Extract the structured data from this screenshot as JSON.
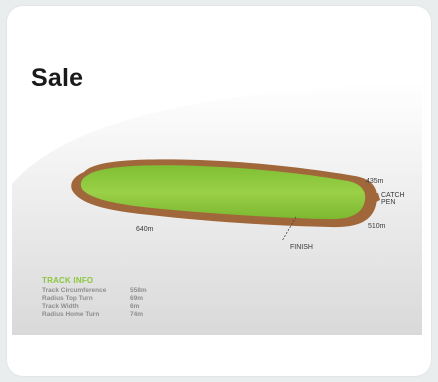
{
  "title": "Sale",
  "track_labels": {
    "dist_640": "640m",
    "dist_435": "435m",
    "dist_510": "510m",
    "catch_pen_line1": "CATCH",
    "catch_pen_line2": "PEN",
    "finish": "FINISH"
  },
  "track_info": {
    "heading": "TRACK INFO",
    "rows": [
      {
        "label": "Track Circumference",
        "value": "558m"
      },
      {
        "label": "Radius Top Turn",
        "value": "69m"
      },
      {
        "label": "Track Width",
        "value": "6m"
      },
      {
        "label": "Radius Home Turn",
        "value": "74m"
      }
    ]
  },
  "colors": {
    "grass": "#8cc63f",
    "track": "#a0673a",
    "info_heading": "#8cc63f",
    "background": "#e9eded"
  },
  "icons": {
    "track_map": "oval-racetrack"
  }
}
